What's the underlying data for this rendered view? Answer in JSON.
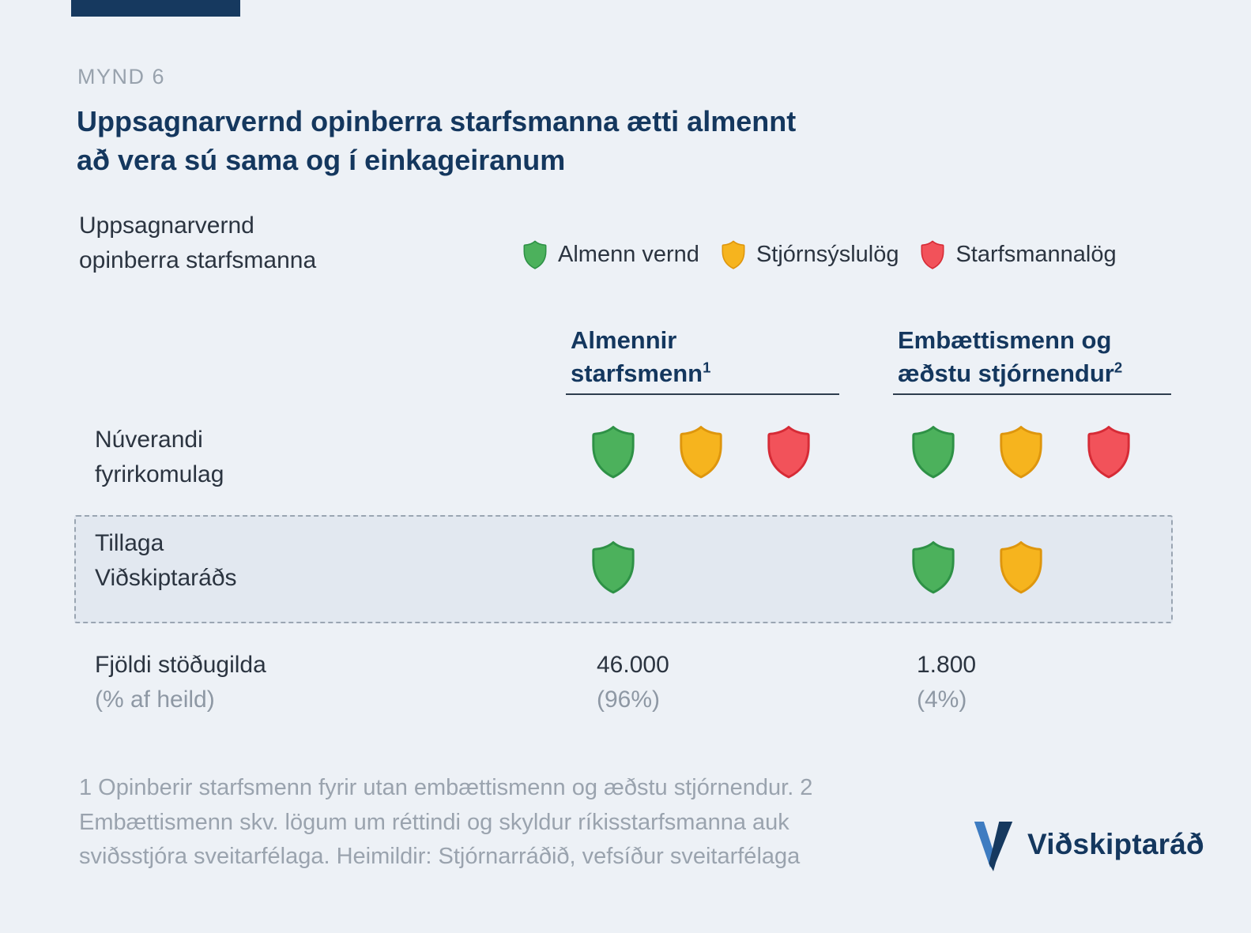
{
  "figure": {
    "tag": "MYND 6",
    "title_line1": "Uppsagnarvernd opinberra starfsmanna ætti almennt",
    "title_line2": "að vera sú sama og í einkageiranum",
    "subject_line1": "Uppsagnarvernd",
    "subject_line2": "opinberra starfsmanna"
  },
  "legend": [
    {
      "icon": "green",
      "label": "Almenn vernd"
    },
    {
      "icon": "yellow",
      "label": "Stjórnsýslulög"
    },
    {
      "icon": "red",
      "label": "Starfsmannalög"
    }
  ],
  "colors": {
    "green": {
      "fill": "#4CB15C",
      "stroke": "#2E9146"
    },
    "yellow": {
      "fill": "#F6B41E",
      "stroke": "#DE960D"
    },
    "red": {
      "fill": "#F2525A",
      "stroke": "#D62B36"
    },
    "navy": "#15395E",
    "light_blue": "#3E7CC1",
    "background": "#EDF1F6",
    "highlight_box": "#E2E8F0"
  },
  "columns": [
    {
      "line1": "Almennir",
      "line2": "starfsmenn",
      "ref": "1"
    },
    {
      "line1": "Embættismenn og",
      "line2": "æðstu stjórnendur",
      "ref": "2"
    }
  ],
  "rows": [
    {
      "label_line1": "Núverandi",
      "label_line2": "fyrirkomulag",
      "col1": [
        "green",
        "yellow",
        "red"
      ],
      "col2": [
        "green",
        "yellow",
        "red"
      ]
    },
    {
      "label_line1": "Tillaga",
      "label_line2": "Viðskiptaráðs",
      "col1": [
        "green"
      ],
      "col2": [
        "green",
        "yellow"
      ]
    }
  ],
  "totals": {
    "label": "Fjöldi stöðugilda",
    "label_sub": "(% af heild)",
    "values": [
      {
        "count": "46.000",
        "pct": "(96%)"
      },
      {
        "count": "1.800",
        "pct": "(4%)"
      }
    ]
  },
  "footnote_lines": {
    "l1": "1 Opinberir starfsmenn fyrir utan embættismenn og æðstu stjórnendur. 2",
    "l2": "Embættismenn skv. lögum um réttindi og skyldur ríkisstarfsmanna auk",
    "l3": "sviðsstjóra sveitarfélaga. Heimildir: Stjórnarráðið, vefsíður sveitarfélaga"
  },
  "logo": {
    "text": "Viðskiptaráð"
  },
  "chart_data": {
    "type": "table",
    "title": "Uppsagnarvernd opinberra starfsmanna ætti almennt að vera sú sama og í einkageiranum",
    "subject": "Uppsagnarvernd opinberra starfsmanna",
    "legend": [
      "Almenn vernd",
      "Stjórnsýslulög",
      "Starfsmannalög"
    ],
    "columns": [
      "Almennir starfsmenn",
      "Embættismenn og æðstu stjórnendur"
    ],
    "rows": [
      {
        "label": "Núverandi fyrirkomulag",
        "values": [
          [
            "Almenn vernd",
            "Stjórnsýslulög",
            "Starfsmannalög"
          ],
          [
            "Almenn vernd",
            "Stjórnsýslulög",
            "Starfsmannalög"
          ]
        ],
        "highlighted": false
      },
      {
        "label": "Tillaga Viðskiptaráðs",
        "values": [
          [
            "Almenn vernd"
          ],
          [
            "Almenn vernd",
            "Stjórnsýslulög"
          ]
        ],
        "highlighted": true
      },
      {
        "label": "Fjöldi stöðugilda (% af heild)",
        "values": [
          "46.000 (96%)",
          "1.800 (4%)"
        ],
        "highlighted": false
      }
    ]
  }
}
